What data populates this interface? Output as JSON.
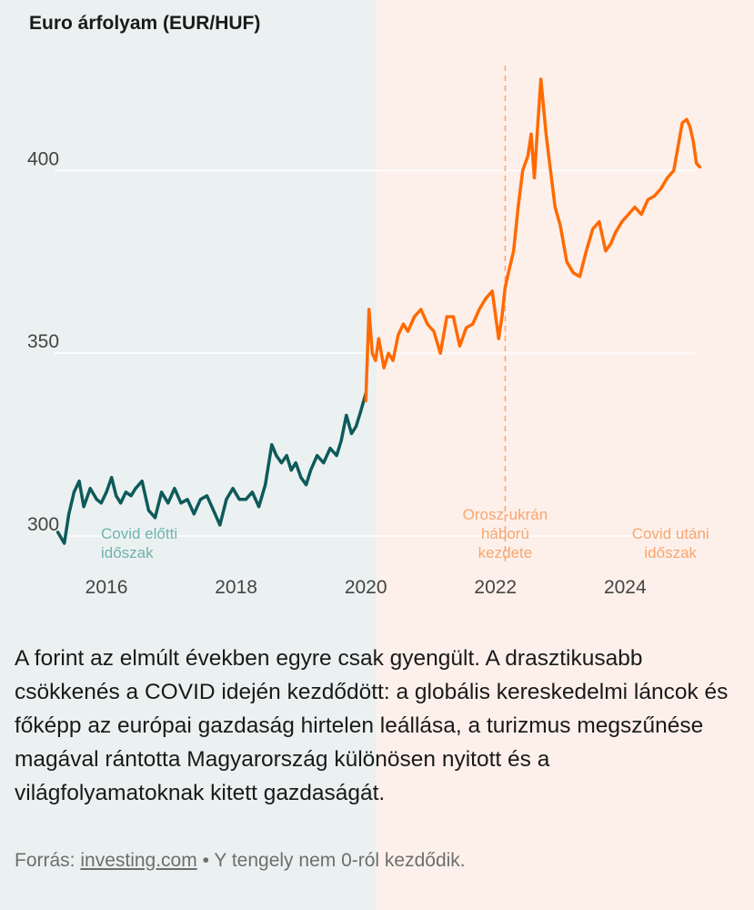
{
  "title": "Euro árfolyam (EUR/HUF)",
  "caption": "A forint az elmúlt években egyre csak gyengült. A drasztikusabb csökkenés a COVID idején kezdődött: a globális kereskedelmi láncok és főképp az európai gazdaság hirtelen leállása, a turizmus megszűnése magával rántotta Magyarország különösen nyitott és a világfolyamatoknak kitett gazdaságát.",
  "footer": {
    "source_prefix": "Forrás: ",
    "source_link": "investing.com",
    "note": " • Y tengely nem 0-ról kezdődik."
  },
  "colors": {
    "pre_covid_line": "#0e5a5a",
    "post_covid_line": "#ff6a00",
    "pre_covid_bg": "#ebf1f1",
    "post_covid_bg": "#fdf0ea",
    "pre_covid_label": "#6fb3ad",
    "post_covid_label": "#f7a66f",
    "grid": "#ffffff",
    "axis_text": "#444444"
  },
  "chart_data": {
    "type": "line",
    "title": "Euro árfolyam (EUR/HUF)",
    "xlabel": "",
    "ylabel": "",
    "xlim": [
      2015.2,
      2025.3
    ],
    "ylim": [
      296,
      428
    ],
    "y_ticks": [
      300,
      350,
      400
    ],
    "x_ticks": [
      2016,
      2018,
      2020,
      2022,
      2024
    ],
    "grid": true,
    "legend": "none",
    "series": [
      {
        "period": "pre",
        "x": [
          2015.25,
          2015.35,
          2015.42,
          2015.5,
          2015.58,
          2015.65,
          2015.75,
          2015.85,
          2015.92,
          2016.0,
          2016.08,
          2016.15,
          2016.22,
          2016.3,
          2016.38,
          2016.45,
          2016.55,
          2016.65,
          2016.75,
          2016.85,
          2016.95,
          2017.05,
          2017.15,
          2017.25,
          2017.35,
          2017.45,
          2017.55,
          2017.65,
          2017.75,
          2017.85,
          2017.95,
          2018.05,
          2018.15,
          2018.25,
          2018.35,
          2018.45,
          2018.55,
          2018.62,
          2018.7,
          2018.78,
          2018.85,
          2018.92,
          2019.0,
          2019.08,
          2019.15,
          2019.25,
          2019.35,
          2019.45,
          2019.55,
          2019.62,
          2019.7,
          2019.78,
          2019.85,
          2019.92,
          2020.0
        ],
        "y": [
          301,
          298,
          306,
          312,
          315,
          308,
          313,
          310,
          309,
          312,
          316,
          311,
          309,
          312,
          311,
          313,
          315,
          307,
          305,
          312,
          309,
          313,
          309,
          310,
          306,
          310,
          311,
          307,
          303,
          310,
          313,
          310,
          310,
          312,
          308,
          314,
          325,
          322,
          320,
          322,
          318,
          320,
          316,
          314,
          318,
          322,
          320,
          324,
          322,
          326,
          333,
          328,
          330,
          334,
          339
        ]
      },
      {
        "period": "post",
        "x": [
          2020.0,
          2020.05,
          2020.1,
          2020.15,
          2020.2,
          2020.28,
          2020.35,
          2020.42,
          2020.5,
          2020.58,
          2020.65,
          2020.75,
          2020.85,
          2020.95,
          2021.05,
          2021.15,
          2021.25,
          2021.35,
          2021.45,
          2021.55,
          2021.65,
          2021.75,
          2021.85,
          2021.95,
          2022.05,
          2022.1,
          2022.15,
          2022.2,
          2022.28,
          2022.35,
          2022.42,
          2022.5,
          2022.55,
          2022.6,
          2022.65,
          2022.7,
          2022.78,
          2022.85,
          2022.92,
          2023.0,
          2023.1,
          2023.2,
          2023.3,
          2023.4,
          2023.5,
          2023.6,
          2023.7,
          2023.78,
          2023.85,
          2023.95,
          2024.05,
          2024.15,
          2024.25,
          2024.35,
          2024.45,
          2024.55,
          2024.65,
          2024.75,
          2024.82,
          2024.88,
          2024.95,
          2025.0,
          2025.05,
          2025.1,
          2025.15
        ],
        "y": [
          337,
          362,
          350,
          348,
          354,
          346,
          350,
          348,
          355,
          358,
          356,
          360,
          362,
          358,
          356,
          350,
          360,
          360,
          352,
          357,
          358,
          362,
          365,
          367,
          354,
          360,
          368,
          372,
          378,
          390,
          400,
          404,
          410,
          398,
          412,
          425,
          410,
          400,
          390,
          385,
          375,
          372,
          371,
          378,
          384,
          386,
          378,
          380,
          383,
          386,
          388,
          390,
          388,
          392,
          393,
          395,
          398,
          400,
          407,
          413,
          414,
          412,
          408,
          402,
          401
        ]
      }
    ],
    "annotations": [
      {
        "text_lines": [
          "Covid előtti",
          "időszak"
        ],
        "x": 2016.3,
        "y": 301
      },
      {
        "text_lines": [
          "Orosz-ukrán",
          "háború",
          "kezdete"
        ],
        "x": 2022.15,
        "y": 301,
        "vline_x": 2022.15
      },
      {
        "text_lines": [
          "Covid utáni",
          "időszak"
        ],
        "x": 2024.7,
        "y": 301
      }
    ]
  }
}
